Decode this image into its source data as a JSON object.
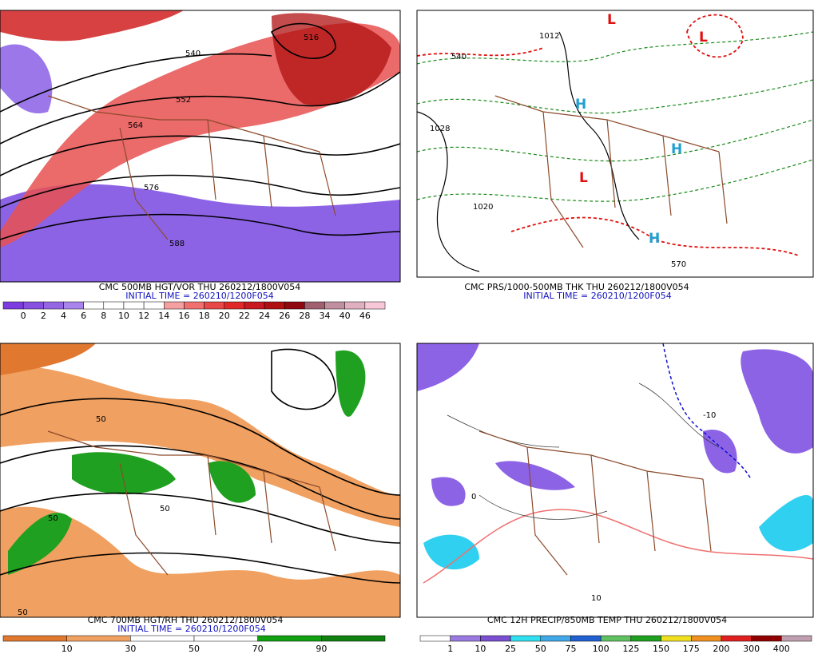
{
  "panels": [
    {
      "caption": "CMC 500MB HGT/VOR THU 260212/1800V054",
      "initial": "INITIAL TIME = 260210/1200F054",
      "labels": [
        "552",
        "564",
        "576",
        "588",
        "540",
        "516"
      ],
      "colorbar": {
        "labels": [
          0,
          2,
          4,
          6,
          8,
          10,
          12,
          14,
          16,
          18,
          20,
          22,
          24,
          26,
          28,
          34,
          40,
          46
        ],
        "colors": [
          "#7d3ce0",
          "#8750e0",
          "#9466e4",
          "#a884ec",
          "#ffffff",
          "#ffffff",
          "#ffffff",
          "#ffffff",
          "#f4a0a0",
          "#f07070",
          "#e84848",
          "#e02828",
          "#c81820",
          "#b01010",
          "#900810",
          "#a06070",
          "#c090a0",
          "#e0b0c0",
          "#f8c8d8"
        ]
      }
    },
    {
      "caption": "CMC PRS/1000-500MB THK THU 260212/1800V054",
      "initial": "INITIAL TIME = 260210/1200F054",
      "labels": [
        "L",
        "L",
        "L",
        "H",
        "H",
        "H",
        "1012",
        "1020",
        "1028",
        "540",
        "570"
      ]
    },
    {
      "caption": "CMC 700MB HGT/RH THU 260212/1800V054",
      "initial": "INITIAL TIME = 260210/1200F054",
      "labels": [
        "50",
        "50",
        "50",
        "50"
      ],
      "colorbar": {
        "labels": [
          10,
          30,
          50,
          70,
          90
        ],
        "colors": [
          "#e07830",
          "#f0a060",
          "#ffffff",
          "#ffffff",
          "#10a010",
          "#108010"
        ]
      }
    },
    {
      "caption": "CMC 12H PRECIP/850MB TEMP THU 260212/1800V054",
      "labels": [
        "-10",
        "10",
        "0"
      ],
      "colorbar": {
        "labels": [
          1,
          10,
          25,
          50,
          75,
          100,
          125,
          150,
          175,
          200,
          300,
          400
        ],
        "colors": [
          "#ffffff",
          "#9a7ae0",
          "#7a50d0",
          "#30e0f0",
          "#40a8e8",
          "#2060d0",
          "#60c060",
          "#20a020",
          "#f0e020",
          "#f09020",
          "#e02020",
          "#900000",
          "#c0a0b0"
        ]
      }
    }
  ]
}
